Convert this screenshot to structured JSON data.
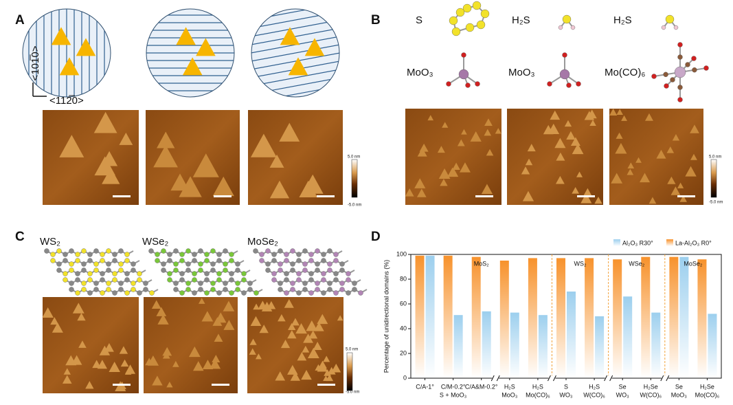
{
  "panels": {
    "A": {
      "label": "A",
      "axis_vertical": "<101̅0>",
      "axis_horizontal": "<112̅0>",
      "colorbar": [
        "5.0 nm",
        "-5.0 nm"
      ]
    },
    "B": {
      "label": "B",
      "precursors": [
        "S",
        "H₂S",
        "H₂S"
      ],
      "metals": [
        "MoO₃",
        "MoO₃",
        "Mo(CO)₆"
      ],
      "colorbar": [
        "5.0 nm",
        "-5.0 nm"
      ]
    },
    "C": {
      "label": "C",
      "materials": [
        "WS₂",
        "WSe₂",
        "MoSe₂"
      ],
      "colorbar": [
        "5.0 nm",
        "-5.0 nm"
      ]
    },
    "D": {
      "label": "D"
    }
  },
  "chart_data": {
    "type": "bar",
    "ylabel": "Percentage of unidirectional domains (%)",
    "categories": [
      "C/A-1°",
      "C/M-0.2°",
      "C/A&M-0.2°",
      "H₂S",
      "H₂S",
      "S",
      "H₂S",
      "Se",
      "H₂Se",
      "Se",
      "H₂Se"
    ],
    "precursors": [
      null,
      null,
      null,
      "MoO₃",
      "Mo(CO)₆",
      "WO₃",
      "W(CO)₆",
      "WO₃",
      "W(CO)₆",
      "MoO₃",
      "Mo(CO)₆"
    ],
    "shared_precursor": "S + MoO₃",
    "groups": [
      "MoS₂",
      "WS₂",
      "WSe₂",
      "MoSe₂"
    ],
    "series": [
      {
        "name": "La-Al₂O₃ R0°",
        "color": "#f7922c",
        "values": [
          99,
          99,
          98,
          95,
          97,
          97,
          97,
          96,
          98,
          98,
          96
        ]
      },
      {
        "name": "Al₂O₃ R30°",
        "color": "#9ccfee",
        "values": [
          99,
          51,
          54,
          53,
          51,
          70,
          50,
          66,
          53,
          98,
          52
        ]
      }
    ],
    "ylim": [
      0,
      100
    ],
    "yticks": [
      0,
      20,
      40,
      60,
      80,
      100
    ]
  }
}
